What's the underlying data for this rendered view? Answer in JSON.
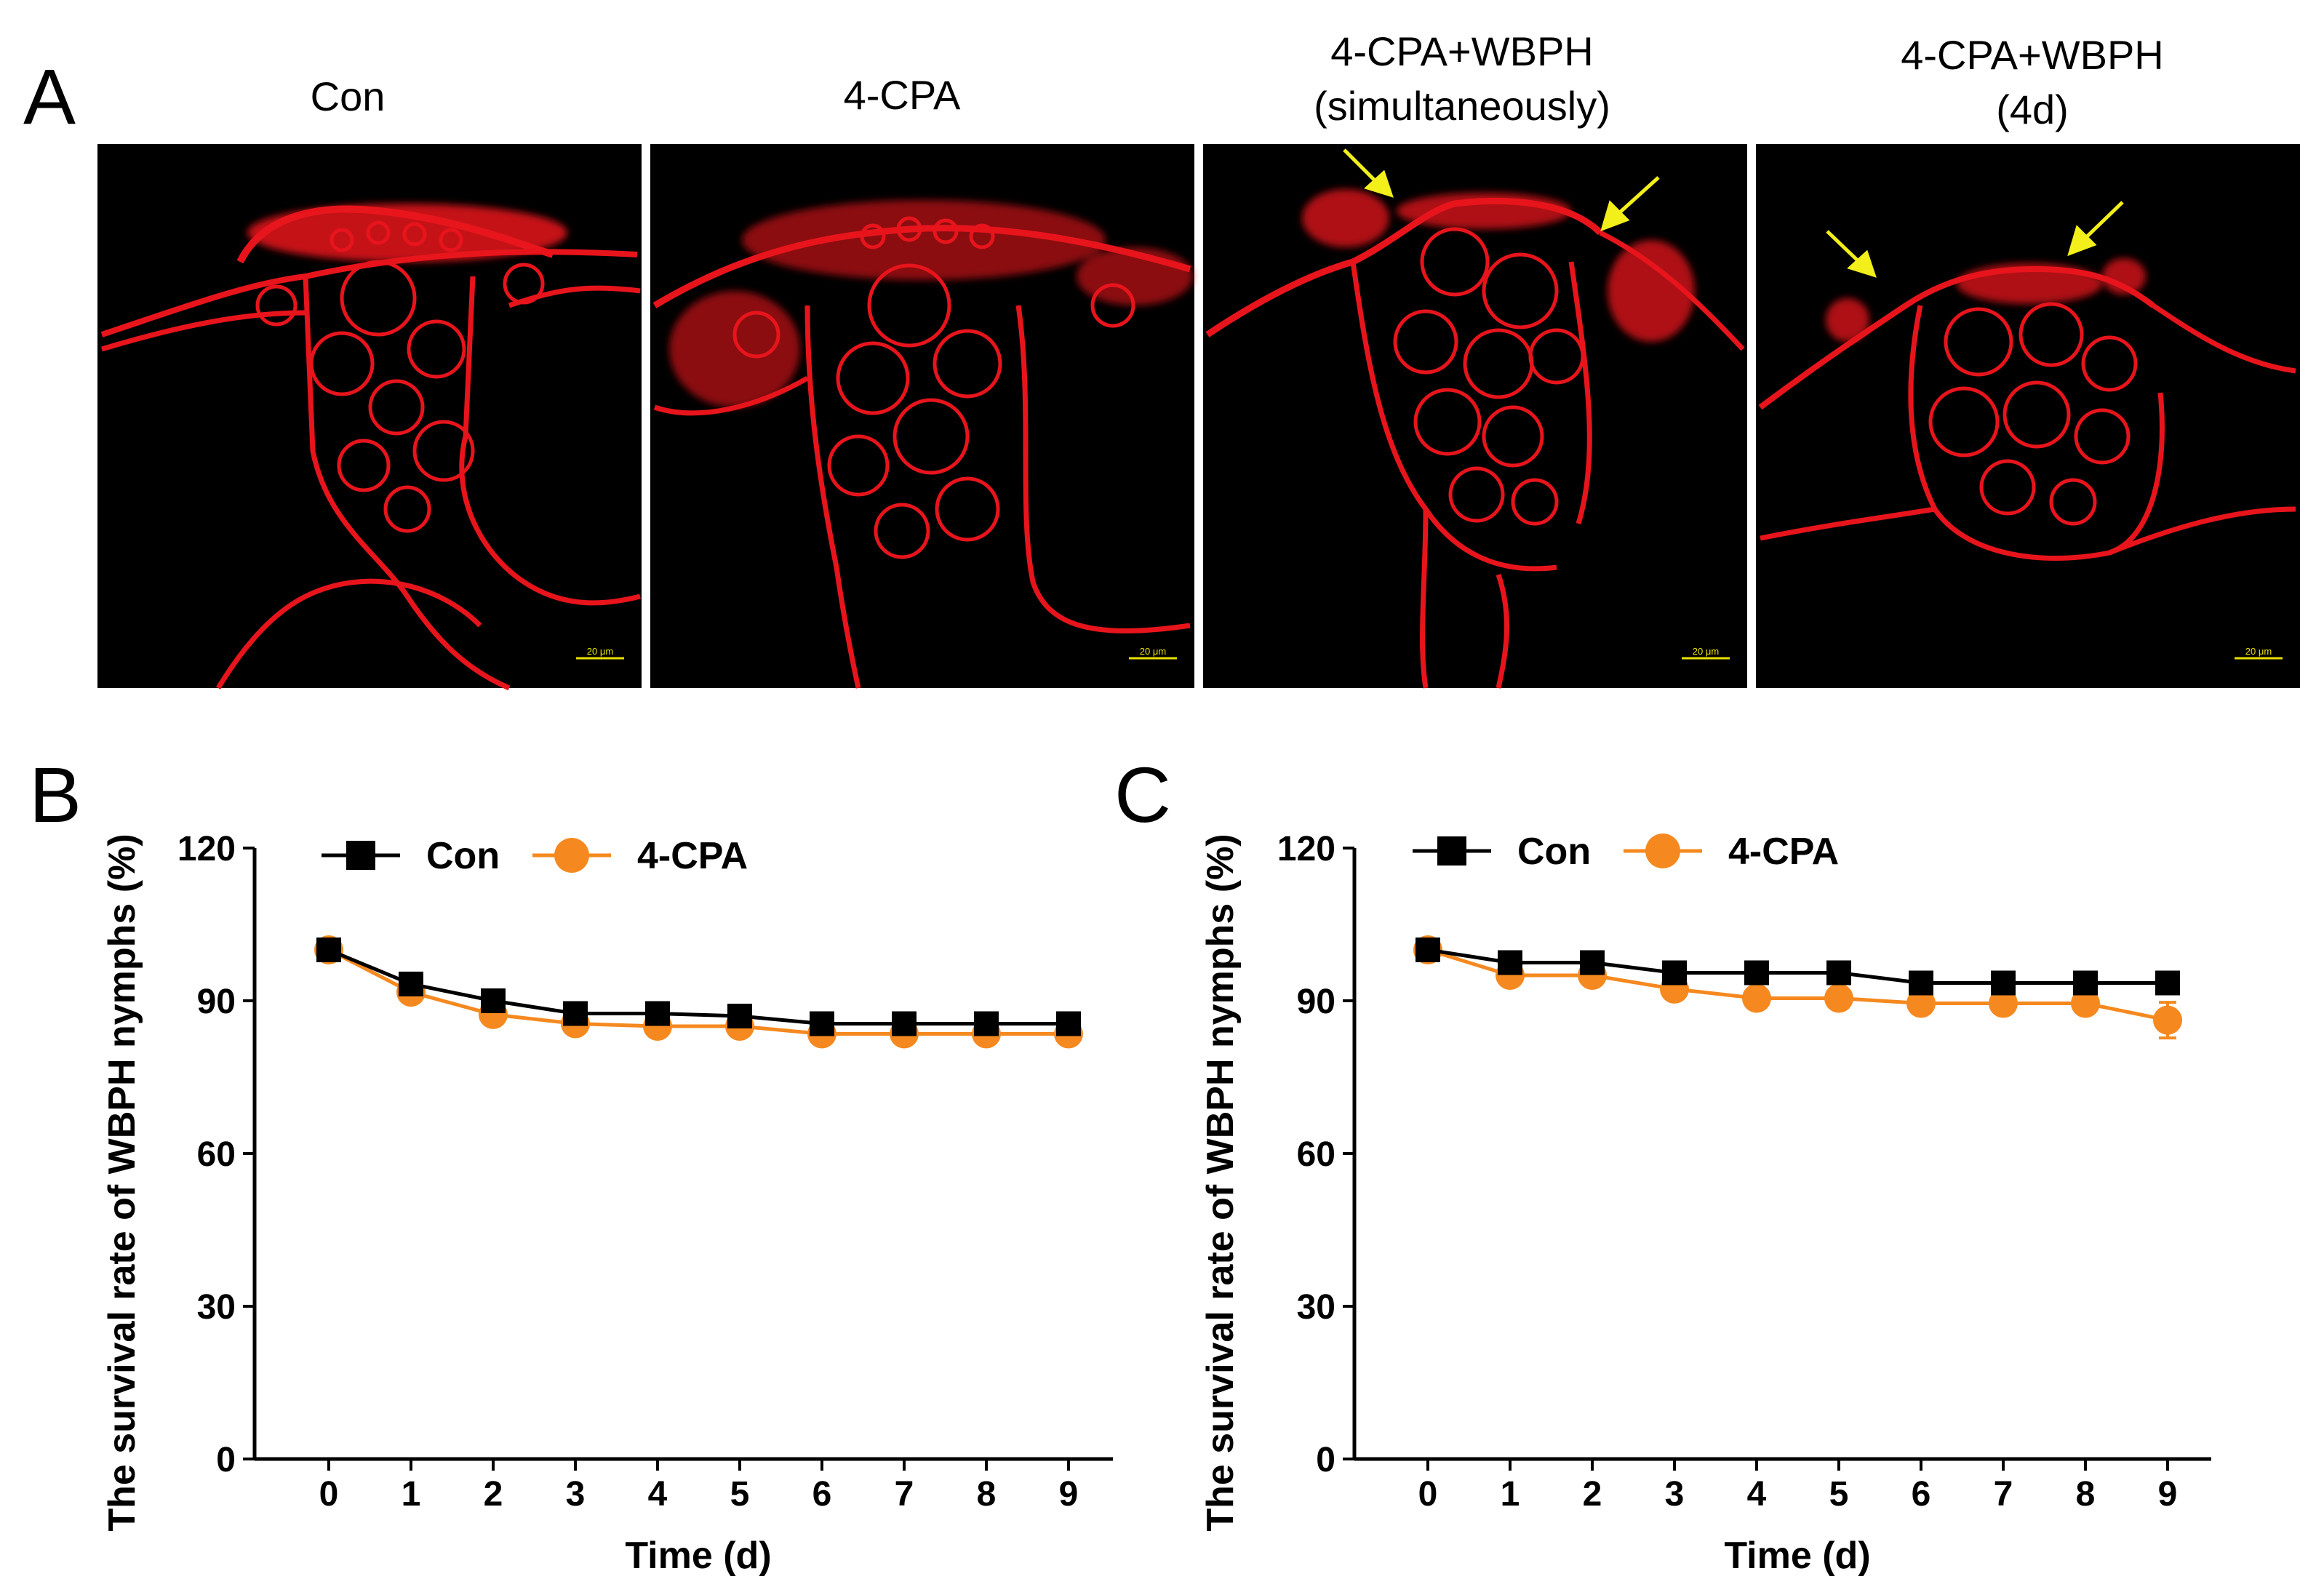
{
  "panel_a": {
    "letter": "A",
    "images": [
      {
        "title_lines": [
          "Con"
        ],
        "scale_bar": "20 μm"
      },
      {
        "title_lines": [
          "4-CPA"
        ],
        "scale_bar": "20 μm"
      },
      {
        "title_lines": [
          "4-CPA+WBPH",
          "(simultaneously)"
        ],
        "scale_bar": "20 μm"
      },
      {
        "title_lines": [
          "4-CPA+WBPH",
          "(4d)"
        ],
        "scale_bar": "20 μm"
      }
    ]
  },
  "colors": {
    "con": "#000000",
    "cpa": "#f5891f",
    "tissue": "#e8141c",
    "arrow": "#f2ef1a"
  },
  "chart_data": [
    {
      "panel": "B",
      "type": "line",
      "xlabel": "Time (d)",
      "ylabel": "The survival rate of WBPH nymphs (%)",
      "x": [
        0,
        1,
        2,
        3,
        4,
        5,
        6,
        7,
        8,
        9
      ],
      "ylim": [
        0,
        120
      ],
      "yticks": [
        0,
        30,
        60,
        90,
        120
      ],
      "legend_position": "top-left",
      "series": [
        {
          "name": "Con",
          "marker": "square",
          "color": "#000000",
          "values": [
            100,
            93.3,
            90,
            87.5,
            87.5,
            87,
            85.5,
            85.5,
            85.5,
            85.5
          ],
          "error": [
            1,
            1,
            1,
            1.2,
            1.2,
            1.2,
            1.2,
            1.2,
            1.2,
            1.2
          ]
        },
        {
          "name": "4-CPA",
          "marker": "circle",
          "color": "#f5891f",
          "values": [
            100,
            91.7,
            87.3,
            85.5,
            85,
            85,
            83.5,
            83.5,
            83.5,
            83.5
          ],
          "error": [
            1,
            1.2,
            1.2,
            1.2,
            1.2,
            1.2,
            1.2,
            1.2,
            1.2,
            1.2
          ]
        }
      ]
    },
    {
      "panel": "C",
      "type": "line",
      "xlabel": "Time (d)",
      "ylabel": "The survival rate of WBPH nymphs (%)",
      "x": [
        0,
        1,
        2,
        3,
        4,
        5,
        6,
        7,
        8,
        9
      ],
      "ylim": [
        0,
        120
      ],
      "yticks": [
        0,
        30,
        60,
        90,
        120
      ],
      "legend_position": "top-left",
      "series": [
        {
          "name": "Con",
          "marker": "square",
          "color": "#000000",
          "values": [
            100,
            97.5,
            97.5,
            95.5,
            95.5,
            95.5,
            93.5,
            93.5,
            93.5,
            93.5
          ],
          "error": [
            1,
            1.5,
            1.5,
            1.5,
            1.5,
            1.5,
            1.5,
            1.5,
            1.5,
            1.5
          ]
        },
        {
          "name": "4-CPA",
          "marker": "circle",
          "color": "#f5891f",
          "values": [
            100,
            95,
            95,
            92.3,
            90.5,
            90.5,
            89.5,
            89.5,
            89.5,
            86.2
          ],
          "error": [
            1,
            1.5,
            1.5,
            1.5,
            2,
            2,
            2,
            2,
            2,
            3.5
          ]
        }
      ]
    }
  ]
}
